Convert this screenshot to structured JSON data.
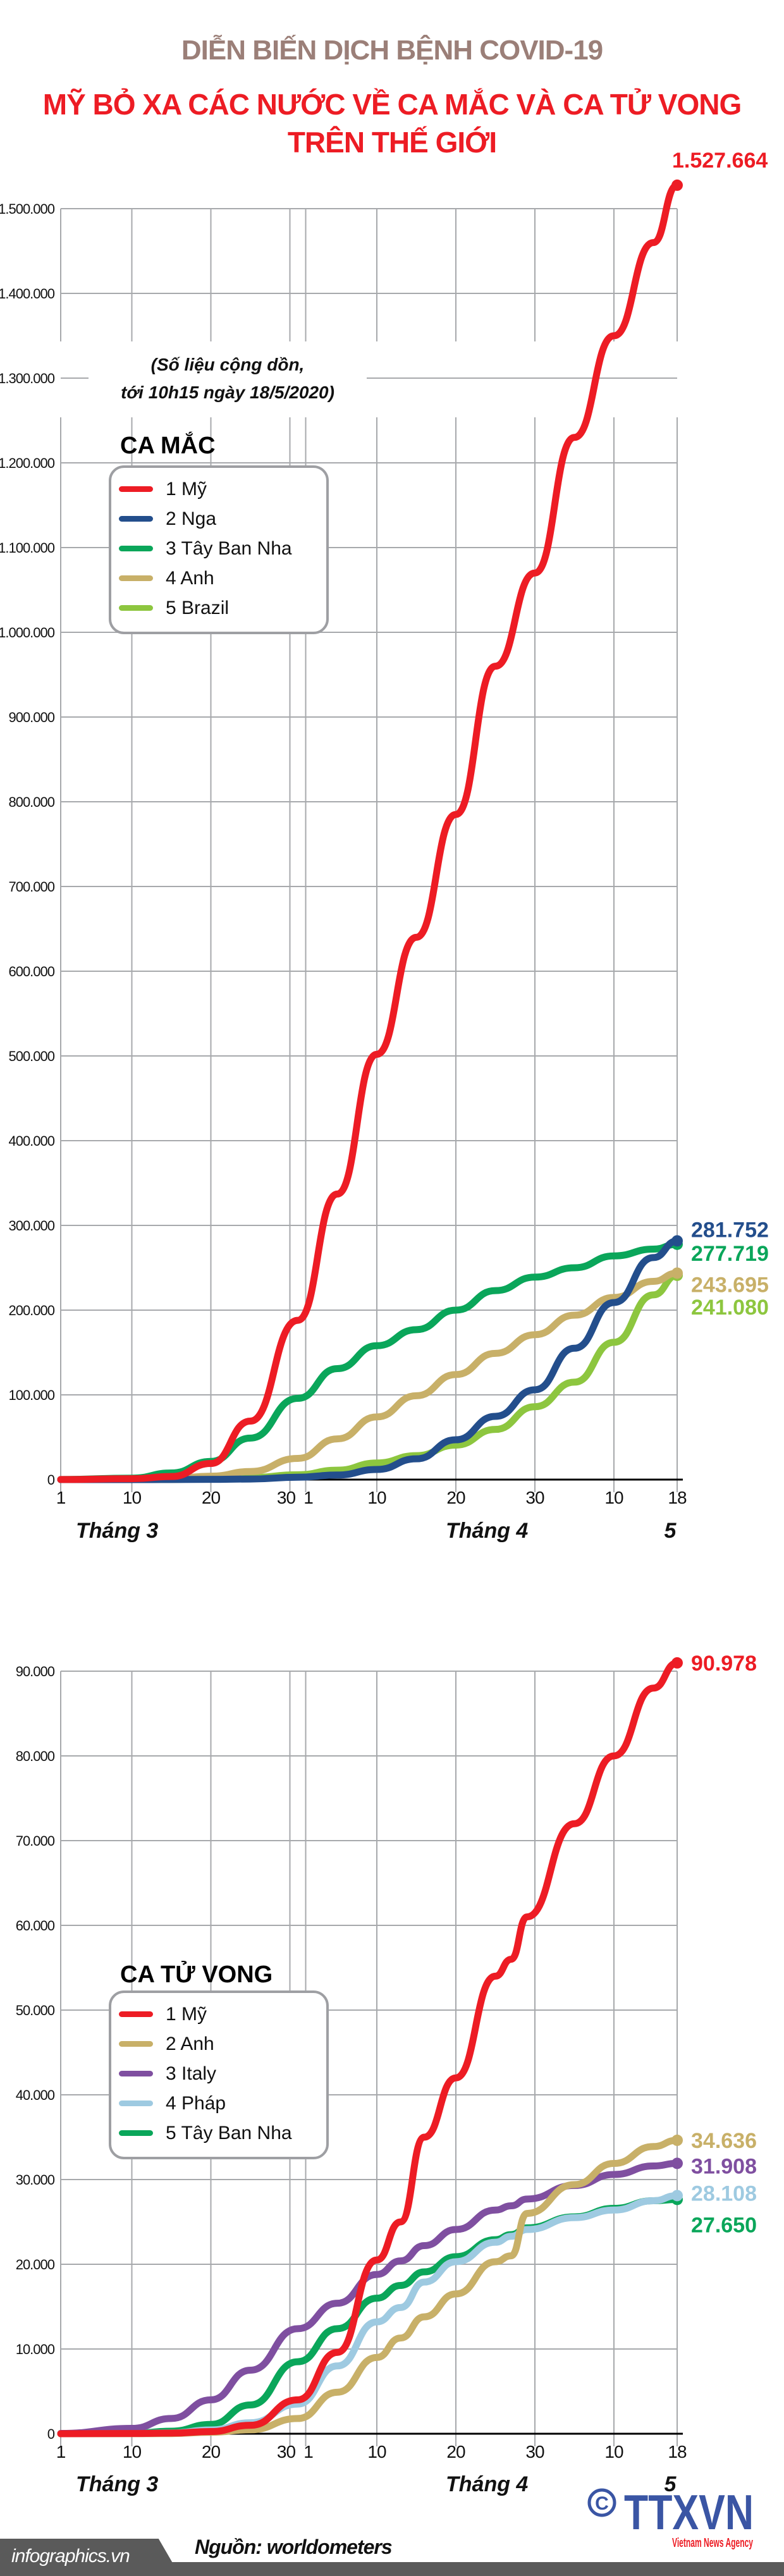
{
  "header": {
    "supertitle": "DIỄN BIẾN DỊCH BỆNH COVID-19",
    "title_line1": "MỸ BỎ XA CÁC NƯỚC VỀ CA MẮC VÀ CA TỬ VONG",
    "title_line2": "TRÊN THẾ GIỚI"
  },
  "note": {
    "line1": "(Số liệu cộng dồn,",
    "line2": "tới 10h15 ngày 18/5/2020)"
  },
  "x_axis": {
    "ticks": [
      {
        "day": "2020-03-01",
        "label": "1"
      },
      {
        "day": "2020-03-10",
        "label": "10"
      },
      {
        "day": "2020-03-20",
        "label": "20"
      },
      {
        "day": "2020-03-30",
        "label": "30"
      },
      {
        "day": "2020-04-01",
        "label": "1"
      },
      {
        "day": "2020-04-10",
        "label": "10"
      },
      {
        "day": "2020-04-20",
        "label": "20"
      },
      {
        "day": "2020-04-30",
        "label": "30"
      },
      {
        "day": "2020-05-10",
        "label": "10"
      },
      {
        "day": "2020-05-18",
        "label": "18"
      }
    ],
    "months": [
      {
        "label": "Tháng 3"
      },
      {
        "label": "Tháng 4"
      },
      {
        "label": "5"
      }
    ]
  },
  "chart_data": [
    {
      "type": "line",
      "title": "CA MẮC",
      "ylim": [
        0,
        1500000
      ],
      "ytick_step": 100000,
      "yticks": [
        "0",
        "100.000",
        "200.000",
        "300.000",
        "400.000",
        "500.000",
        "600.000",
        "700.000",
        "800.000",
        "900.000",
        "1.000.000",
        "1.100.000",
        "1.200.000",
        "1.300.000",
        "1.400.000",
        "1.500.000"
      ],
      "grid": true,
      "legend_placement": "top-left",
      "x": [
        "2020-03-01",
        "2020-03-10",
        "2020-03-15",
        "2020-03-20",
        "2020-03-25",
        "2020-03-31",
        "2020-04-05",
        "2020-04-10",
        "2020-04-15",
        "2020-04-20",
        "2020-04-25",
        "2020-04-30",
        "2020-05-05",
        "2020-05-10",
        "2020-05-15",
        "2020-05-18"
      ],
      "series": [
        {
          "name": "1 Mỹ",
          "color": "#ed1c24",
          "end_label": "1.527.664",
          "values": [
            75,
            1000,
            3600,
            19000,
            69000,
            188000,
            337000,
            502000,
            640000,
            785000,
            960000,
            1070000,
            1230000,
            1350000,
            1460000,
            1527664
          ]
        },
        {
          "name": "2 Nga",
          "color": "#234e8c",
          "end_label": "281.752",
          "values": [
            0,
            20,
            60,
            250,
            650,
            2800,
            5400,
            11900,
            24500,
            47000,
            74600,
            106000,
            155000,
            209000,
            262000,
            281752
          ]
        },
        {
          "name": "3 Tây Ban Nha",
          "color": "#0aa65a",
          "end_label": "277.719",
          "values": [
            80,
            1700,
            7800,
            21500,
            49000,
            95900,
            131000,
            158000,
            177000,
            200000,
            223000,
            239000,
            250000,
            264000,
            272000,
            277719
          ]
        },
        {
          "name": "4 Anh",
          "color": "#c8b068",
          "end_label": "243.695",
          "values": [
            36,
            373,
            1400,
            4000,
            9500,
            25000,
            48000,
            74000,
            99000,
            124000,
            149000,
            171000,
            194000,
            215000,
            234000,
            243695
          ]
        },
        {
          "name": "5 Brazil",
          "color": "#8dc63f",
          "end_label": "241.080",
          "values": [
            2,
            30,
            200,
            904,
            2400,
            5700,
            11100,
            19600,
            28300,
            40700,
            59200,
            86000,
            115000,
            162000,
            218000,
            241080
          ]
        }
      ]
    },
    {
      "type": "line",
      "title": "CA TỬ VONG",
      "ylim": [
        0,
        90000
      ],
      "ytick_step": 10000,
      "yticks": [
        "0",
        "10.000",
        "20.000",
        "30.000",
        "40.000",
        "50.000",
        "60.000",
        "70.000",
        "80.000",
        "90.000"
      ],
      "grid": true,
      "legend_placement": "center-left",
      "x": [
        "2020-03-01",
        "2020-03-10",
        "2020-03-15",
        "2020-03-20",
        "2020-03-25",
        "2020-03-31",
        "2020-04-05",
        "2020-04-10",
        "2020-04-13",
        "2020-04-16",
        "2020-04-20",
        "2020-04-25",
        "2020-04-27",
        "2020-04-29",
        "2020-05-05",
        "2020-05-10",
        "2020-05-15",
        "2020-05-18"
      ],
      "series": [
        {
          "name": "1 Mỹ",
          "color": "#ed1c24",
          "end_label": "90.978",
          "values": [
            1,
            31,
            70,
            260,
            1000,
            4000,
            9600,
            20500,
            25000,
            35000,
            42000,
            54000,
            56000,
            61000,
            72000,
            80000,
            88000,
            90978
          ]
        },
        {
          "name": "2 Anh",
          "color": "#c8b068",
          "end_label": "34.636",
          "values": [
            0,
            6,
            21,
            177,
            465,
            1800,
            4900,
            9000,
            11300,
            13800,
            16500,
            20300,
            21000,
            26000,
            29400,
            31900,
            33900,
            34636
          ]
        },
        {
          "name": "3 Italy",
          "color": "#7f4fa0",
          "end_label": "31.908",
          "values": [
            34,
            631,
            1800,
            4000,
            7500,
            12400,
            15400,
            18800,
            20400,
            22200,
            24100,
            26400,
            26900,
            27700,
            29300,
            30600,
            31600,
            31908
          ]
        },
        {
          "name": "4 Pháp",
          "color": "#9ecae1",
          "end_label": "28.108",
          "values": [
            2,
            33,
            91,
            450,
            1300,
            3500,
            8000,
            13200,
            14900,
            17900,
            20300,
            22600,
            23300,
            24100,
            25500,
            26400,
            27500,
            28108
          ]
        },
        {
          "name": "5 Tây Ban Nha",
          "color": "#0aa65a",
          "end_label": "27.650",
          "values": [
            0,
            35,
            300,
            1100,
            3400,
            8500,
            12400,
            16000,
            17500,
            19100,
            20900,
            22900,
            23500,
            24300,
            25600,
            26600,
            27500,
            27650
          ]
        }
      ]
    }
  ],
  "footer": {
    "source": "Nguồn: worldometers",
    "site": "infographics.vn",
    "logo_text": "TTXVN",
    "logo_subtext": "Vietnam News Agency"
  }
}
